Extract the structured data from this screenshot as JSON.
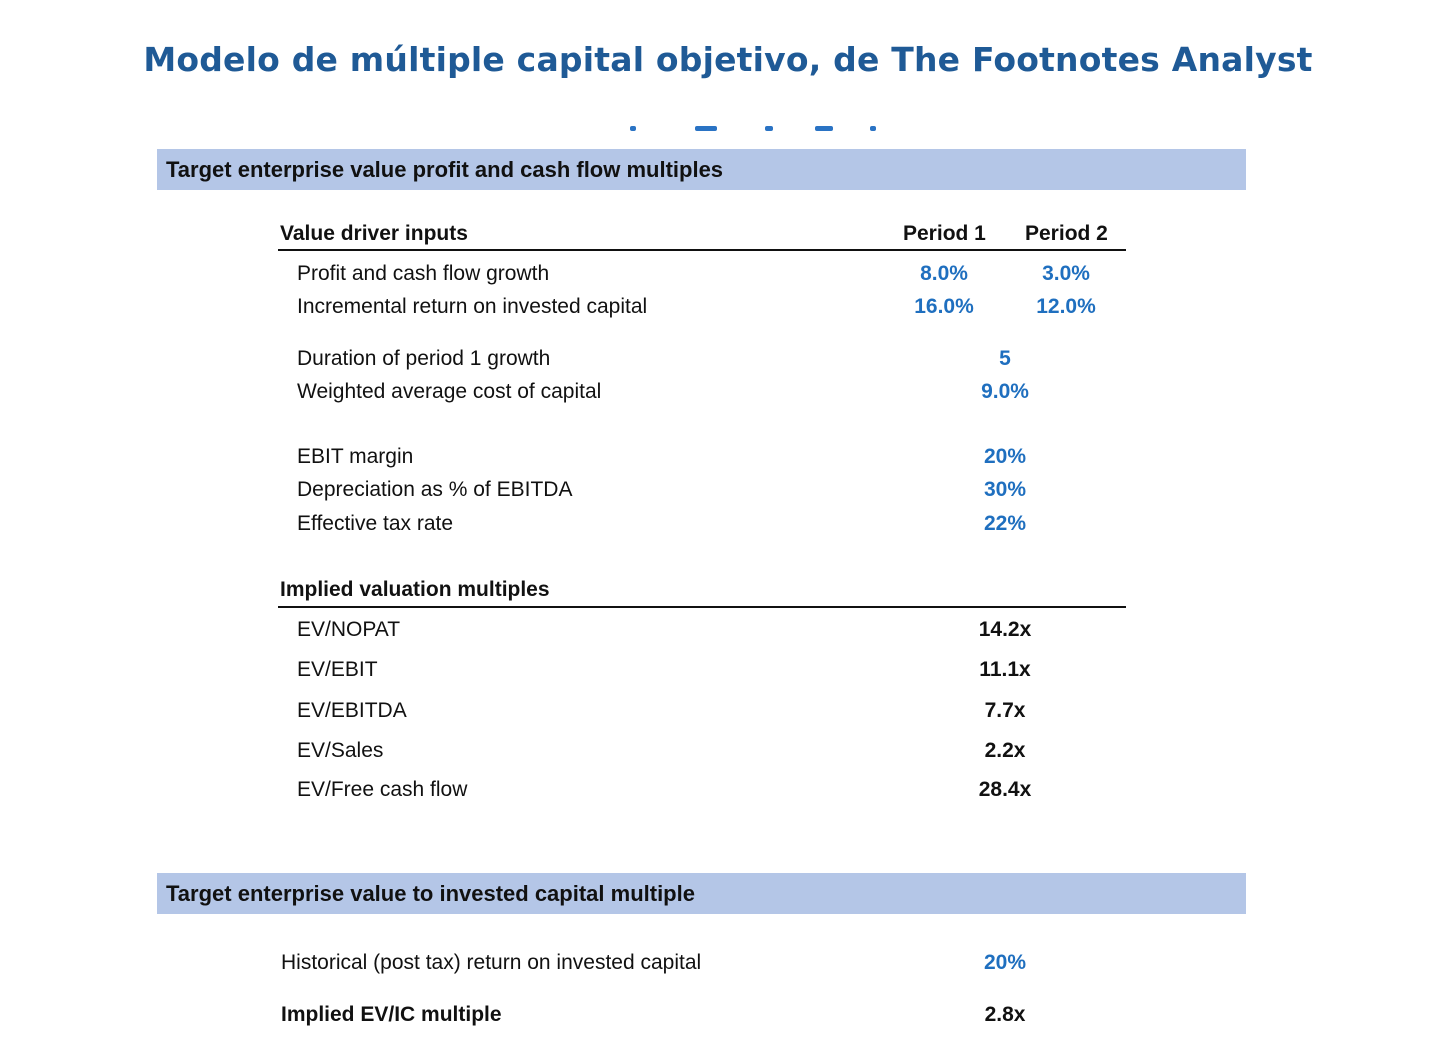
{
  "page_title": "Modelo de múltiple capital objetivo, de The Footnotes Analyst",
  "sections": {
    "profit_multiples": {
      "title": "Target enterprise value profit and cash flow multiples",
      "inputs_header": "Value driver inputs",
      "period1_header": "Period 1",
      "period2_header": "Period 2",
      "growth": {
        "label": "Profit and cash flow growth",
        "p1": "8.0%",
        "p2": "3.0%"
      },
      "roic_incr": {
        "label": "Incremental return on invested capital",
        "p1": "16.0%",
        "p2": "12.0%"
      },
      "duration": {
        "label": "Duration of period 1 growth",
        "value": "5"
      },
      "wacc": {
        "label": "Weighted average cost of capital",
        "value": "9.0%"
      },
      "ebit_margin": {
        "label": "EBIT margin",
        "value": "20%"
      },
      "depreciation": {
        "label": "Depreciation as % of EBITDA",
        "value": "30%"
      },
      "tax_rate": {
        "label": "Effective tax rate",
        "value": "22%"
      },
      "multiples_header": "Implied valuation multiples",
      "ev_nopat": {
        "label": "EV/NOPAT",
        "value": "14.2x"
      },
      "ev_ebit": {
        "label": "EV/EBIT",
        "value": "11.1x"
      },
      "ev_ebitda": {
        "label": "EV/EBITDA",
        "value": "7.7x"
      },
      "ev_sales": {
        "label": "EV/Sales",
        "value": "2.2x"
      },
      "ev_fcf": {
        "label": "EV/Free cash flow",
        "value": "28.4x"
      }
    },
    "ic_multiple": {
      "title": "Target enterprise value to invested capital multiple",
      "hist_roic": {
        "label": "Historical (post tax) return on invested capital",
        "value": "20%"
      },
      "implied_evic": {
        "label": "Implied EV/IC multiple",
        "value": "2.8x"
      }
    }
  },
  "colors": {
    "title": "#1f5a96",
    "input_value": "#1f6fbf",
    "section_bar": "#b4c6e7"
  }
}
